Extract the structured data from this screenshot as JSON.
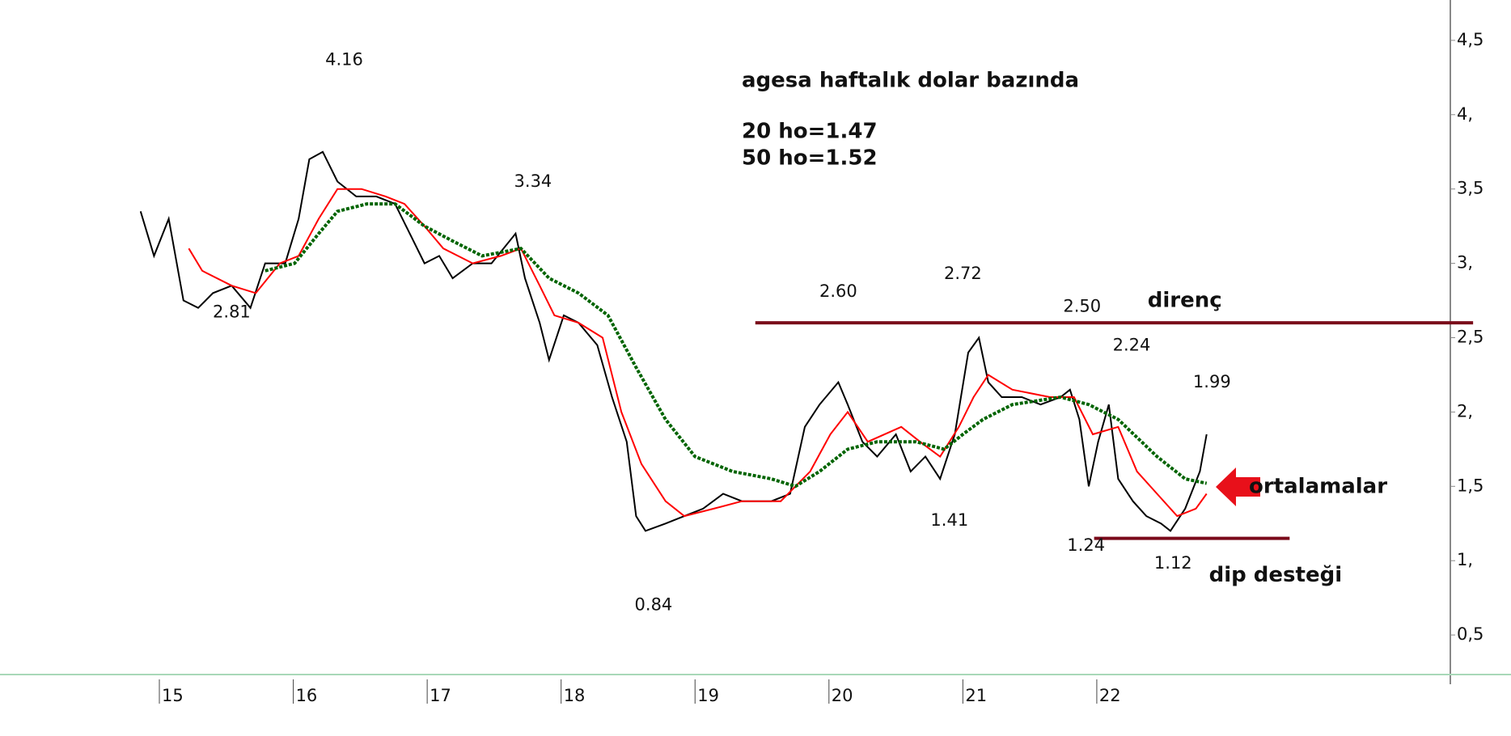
{
  "chart_data": {
    "type": "line",
    "title": "agesa haftalık dolar bazında",
    "subtitle_lines": [
      "20 ho=1.47",
      "50 ho=1.52"
    ],
    "xlim": [
      13.81,
      24.64
    ],
    "xticks": [
      15,
      16,
      17,
      18,
      19,
      20,
      21,
      22
    ],
    "ylim": [
      0.37,
      4.63
    ],
    "yticks": [
      {
        "value": 0.5,
        "label": "0,5"
      },
      {
        "value": 1,
        "label": "1,"
      },
      {
        "value": 1.5,
        "label": "1,5"
      },
      {
        "value": 2,
        "label": "2,"
      },
      {
        "value": 2.5,
        "label": "2,5"
      },
      {
        "value": 3,
        "label": "3,"
      },
      {
        "value": 3.5,
        "label": "3,5"
      },
      {
        "value": 4,
        "label": "4,"
      },
      {
        "value": 4.5,
        "label": "4,5"
      }
    ],
    "series": [
      {
        "color": "#000000",
        "x": [
          14.86,
          14.96,
          15.07,
          15.18,
          15.29,
          15.4,
          15.54,
          15.68,
          15.79,
          15.94,
          16.04,
          16.12,
          16.22,
          16.33,
          16.47,
          16.62,
          16.76,
          16.87,
          16.98,
          17.09,
          17.19,
          17.34,
          17.48,
          17.66,
          17.73,
          17.84,
          17.91,
          18.02,
          18.13,
          18.27,
          18.38,
          18.49,
          18.56,
          18.63,
          18.78,
          18.92,
          19.06,
          19.21,
          19.35,
          19.57,
          19.71,
          19.82,
          19.93,
          20.07,
          20.14,
          20.25,
          20.36,
          20.5,
          20.61,
          20.72,
          20.83,
          20.94,
          21.04,
          21.12,
          21.19,
          21.29,
          21.44,
          21.58,
          21.73,
          21.8,
          21.87,
          21.94,
          22.01,
          22.09,
          22.16,
          22.27,
          22.37,
          22.48,
          22.55,
          22.66,
          22.77,
          22.82
        ],
        "values": [
          3.35,
          3.05,
          3.3,
          2.75,
          2.7,
          2.8,
          2.85,
          2.7,
          3.0,
          3.0,
          3.3,
          3.7,
          3.75,
          3.55,
          3.45,
          3.45,
          3.4,
          3.2,
          3.0,
          3.05,
          2.9,
          3.0,
          3.0,
          3.2,
          2.9,
          2.6,
          2.35,
          2.65,
          2.6,
          2.45,
          2.1,
          1.8,
          1.3,
          1.2,
          1.25,
          1.3,
          1.35,
          1.45,
          1.4,
          1.4,
          1.45,
          1.9,
          2.05,
          2.2,
          2.05,
          1.8,
          1.7,
          1.85,
          1.6,
          1.7,
          1.55,
          1.85,
          2.4,
          2.5,
          2.2,
          2.1,
          2.1,
          2.05,
          2.1,
          2.15,
          1.95,
          1.5,
          1.8,
          2.05,
          1.55,
          1.4,
          1.3,
          1.25,
          1.2,
          1.35,
          1.6,
          1.85
        ]
      },
      {
        "color": "#ff0000",
        "x": [
          15.22,
          15.32,
          15.54,
          15.72,
          15.9,
          16.04,
          16.19,
          16.33,
          16.51,
          16.69,
          16.83,
          16.98,
          17.12,
          17.34,
          17.55,
          17.7,
          17.84,
          17.95,
          18.13,
          18.31,
          18.45,
          18.6,
          18.78,
          18.92,
          19.14,
          19.35,
          19.64,
          19.86,
          20.01,
          20.14,
          20.29,
          20.54,
          20.68,
          20.83,
          20.97,
          21.08,
          21.19,
          21.37,
          21.65,
          21.83,
          21.97,
          22.16,
          22.3,
          22.45,
          22.6,
          22.74,
          22.82
        ],
        "values": [
          3.1,
          2.95,
          2.85,
          2.8,
          3.0,
          3.05,
          3.3,
          3.5,
          3.5,
          3.45,
          3.4,
          3.25,
          3.1,
          3.0,
          3.05,
          3.1,
          2.85,
          2.65,
          2.6,
          2.5,
          2.0,
          1.65,
          1.4,
          1.3,
          1.35,
          1.4,
          1.4,
          1.6,
          1.85,
          2.0,
          1.8,
          1.9,
          1.8,
          1.7,
          1.9,
          2.1,
          2.25,
          2.15,
          2.1,
          2.1,
          1.85,
          1.9,
          1.6,
          1.45,
          1.3,
          1.35,
          1.45
        ]
      },
      {
        "color": "#006400",
        "x": [
          15.79,
          16.01,
          16.19,
          16.33,
          16.55,
          16.76,
          16.98,
          17.19,
          17.41,
          17.7,
          17.91,
          18.13,
          18.35,
          18.56,
          18.78,
          19.0,
          19.28,
          19.57,
          19.75,
          19.93,
          20.14,
          20.36,
          20.65,
          20.86,
          21.0,
          21.15,
          21.37,
          21.73,
          21.94,
          22.16,
          22.45,
          22.66,
          22.82
        ],
        "values": [
          2.95,
          3.0,
          3.2,
          3.35,
          3.4,
          3.4,
          3.25,
          3.15,
          3.05,
          3.1,
          2.9,
          2.8,
          2.65,
          2.3,
          1.95,
          1.7,
          1.6,
          1.55,
          1.5,
          1.6,
          1.75,
          1.8,
          1.8,
          1.75,
          1.85,
          1.95,
          2.05,
          2.1,
          2.05,
          1.95,
          1.7,
          1.55,
          1.52
        ]
      }
    ],
    "levels": [
      {
        "label": "direnç",
        "value": 2.6,
        "x": [
          19.45,
          24.81
        ],
        "color": "#7a0a1a"
      },
      {
        "label": "dip desteği",
        "value": 1.15,
        "x": [
          21.98,
          23.44
        ],
        "color": "#7a0a1a"
      }
    ],
    "arrow_label": "ortalamalar",
    "annotations": [
      {
        "text": "4.16",
        "x": 16.38,
        "y": 4.16,
        "position": "above"
      },
      {
        "text": "2.81",
        "x": 15.54,
        "y": 2.81,
        "position": "below"
      },
      {
        "text": "3.34",
        "x": 17.79,
        "y": 3.34,
        "position": "above"
      },
      {
        "text": "0.84",
        "x": 18.69,
        "y": 0.84,
        "position": "below"
      },
      {
        "text": "2.60",
        "x": 20.07,
        "y": 2.6,
        "position": "above"
      },
      {
        "text": "2.72",
        "x": 21.0,
        "y": 2.72,
        "position": "above"
      },
      {
        "text": "2.50",
        "x": 21.89,
        "y": 2.5,
        "position": "above"
      },
      {
        "text": "2.24",
        "x": 22.26,
        "y": 2.24,
        "position": "above"
      },
      {
        "text": "1.99",
        "x": 22.86,
        "y": 1.99,
        "position": "above"
      },
      {
        "text": "1.41",
        "x": 20.9,
        "y": 1.41,
        "position": "below"
      },
      {
        "text": "1.24",
        "x": 21.92,
        "y": 1.24,
        "position": "below"
      },
      {
        "text": "1.12",
        "x": 22.57,
        "y": 1.12,
        "position": "below"
      }
    ]
  }
}
